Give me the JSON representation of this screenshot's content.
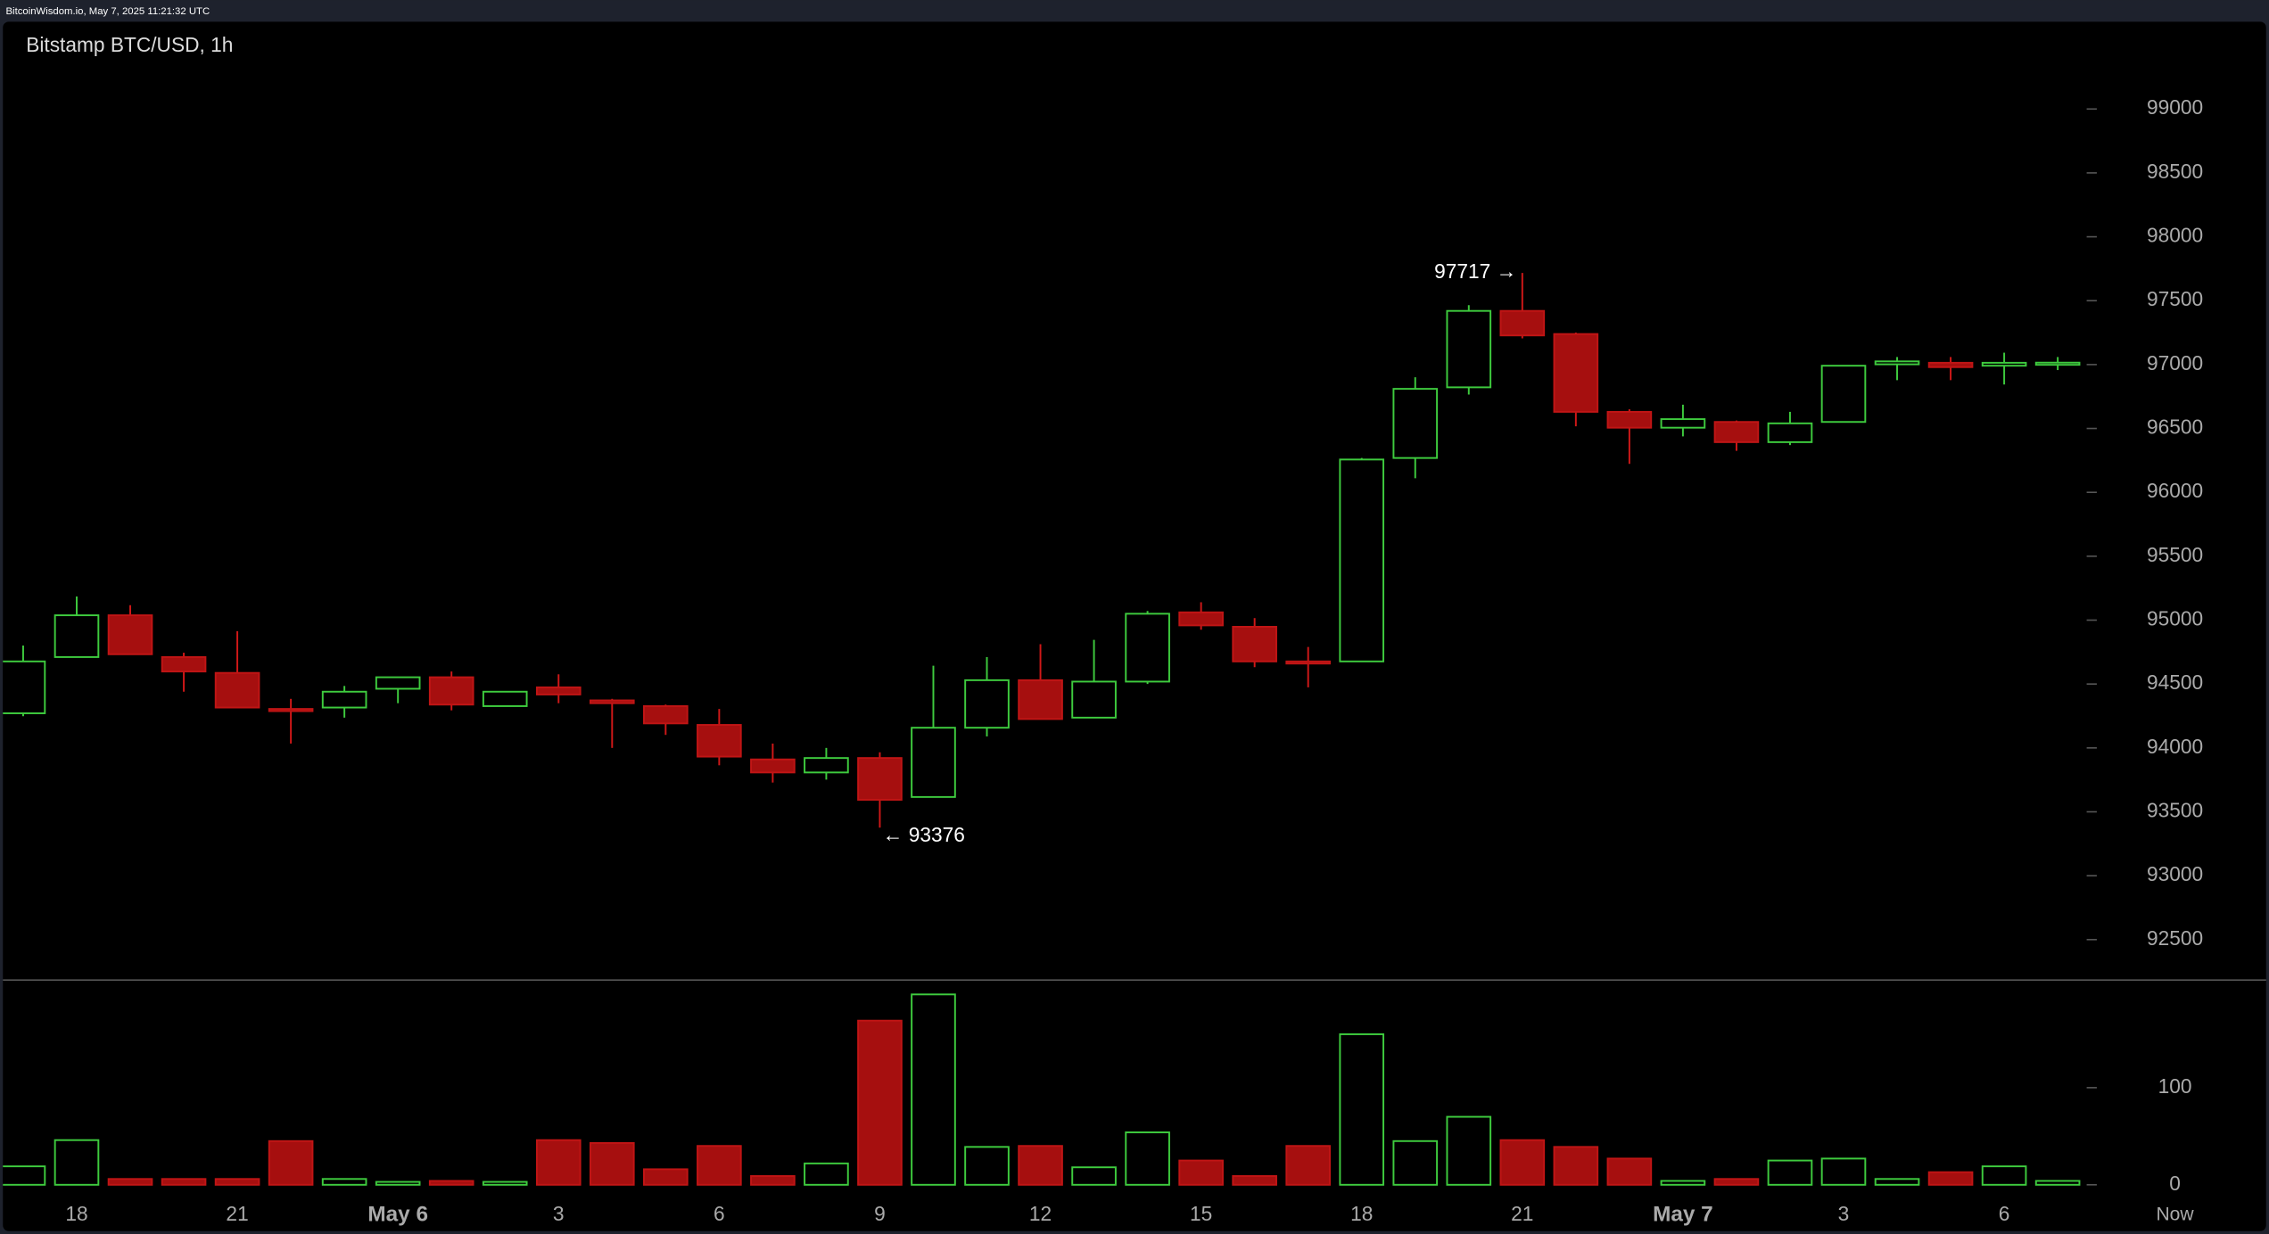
{
  "header": "BitcoinWisdom.io, May 7, 2025 11:21:32 UTC",
  "chart_data": {
    "type": "candlestick",
    "title": "Bitstamp BTC/USD, 1h",
    "categories": [
      null,
      "18",
      null,
      null,
      "21",
      null,
      null,
      "May 6",
      null,
      null,
      "3",
      null,
      null,
      "6",
      null,
      null,
      "9",
      null,
      null,
      "12",
      null,
      null,
      "15",
      null,
      null,
      "18",
      null,
      null,
      "21",
      null,
      null,
      "May 7",
      null,
      null,
      "3",
      null,
      null,
      "6",
      null
    ],
    "now_label": "Now",
    "open": [
      94271,
      94711,
      95038,
      94711,
      94587,
      94305,
      94316,
      94463,
      94553,
      94327,
      94474,
      94372,
      94327,
      94180,
      93910,
      93808,
      93921,
      93616,
      94158,
      94530,
      94237,
      94519,
      95061,
      94948,
      94677,
      94677,
      96269,
      96822,
      97420,
      97239,
      96630,
      96506,
      96551,
      96393,
      96551,
      97002,
      97014,
      96991,
      97014
    ],
    "high": [
      94801,
      95185,
      95117,
      94745,
      94914,
      94384,
      94485,
      94553,
      94598,
      94440,
      94576,
      94384,
      94339,
      94305,
      94034,
      94000,
      93966,
      94643,
      94711,
      94812,
      94846,
      95072,
      95140,
      95016,
      94790,
      96269,
      96901,
      97465,
      97717,
      97250,
      96650,
      96686,
      96562,
      96630,
      96991,
      97059,
      97059,
      97093,
      97059
    ],
    "low": [
      94248,
      94711,
      94733,
      94440,
      94316,
      94034,
      94237,
      94350,
      94294,
      94327,
      94350,
      94000,
      94102,
      93864,
      93729,
      93752,
      93376,
      93616,
      94090,
      94226,
      94237,
      94500,
      94925,
      94632,
      94474,
      94677,
      96110,
      96765,
      97205,
      96517,
      96223,
      96438,
      96325,
      96370,
      96551,
      96878,
      96878,
      96844,
      96957
    ],
    "close": [
      94677,
      95038,
      94733,
      94598,
      94316,
      94294,
      94440,
      94553,
      94339,
      94440,
      94418,
      94350,
      94192,
      93932,
      93808,
      93921,
      93594,
      94158,
      94530,
      94226,
      94519,
      95050,
      94959,
      94677,
      94666,
      96257,
      96810,
      97420,
      97228,
      96630,
      96506,
      96573,
      96393,
      96540,
      96991,
      97025,
      96980,
      97014,
      97015
    ],
    "volume": [
      19,
      46,
      6,
      6,
      6,
      45,
      6,
      3,
      4,
      3,
      46,
      43,
      16,
      40,
      9,
      22,
      169,
      196,
      39,
      40,
      18,
      54,
      25,
      9,
      40,
      155,
      45,
      70,
      46,
      39,
      27,
      4,
      6,
      25,
      27,
      6,
      13,
      19,
      4
    ],
    "up_color": "#3ecb3e",
    "down_color": "#a60f0f",
    "ylim": [
      92200,
      99400
    ],
    "yticks": [
      92500,
      93000,
      93500,
      94000,
      94500,
      95000,
      95500,
      96000,
      96500,
      97000,
      97500,
      98000,
      98500,
      99000
    ],
    "volume_ylim": [
      0,
      210
    ],
    "volume_yticks": [
      0,
      100
    ],
    "annotations": [
      {
        "value": 97717,
        "label": "97717 →"
      },
      {
        "value": 93376,
        "label": "← 93376"
      }
    ]
  }
}
